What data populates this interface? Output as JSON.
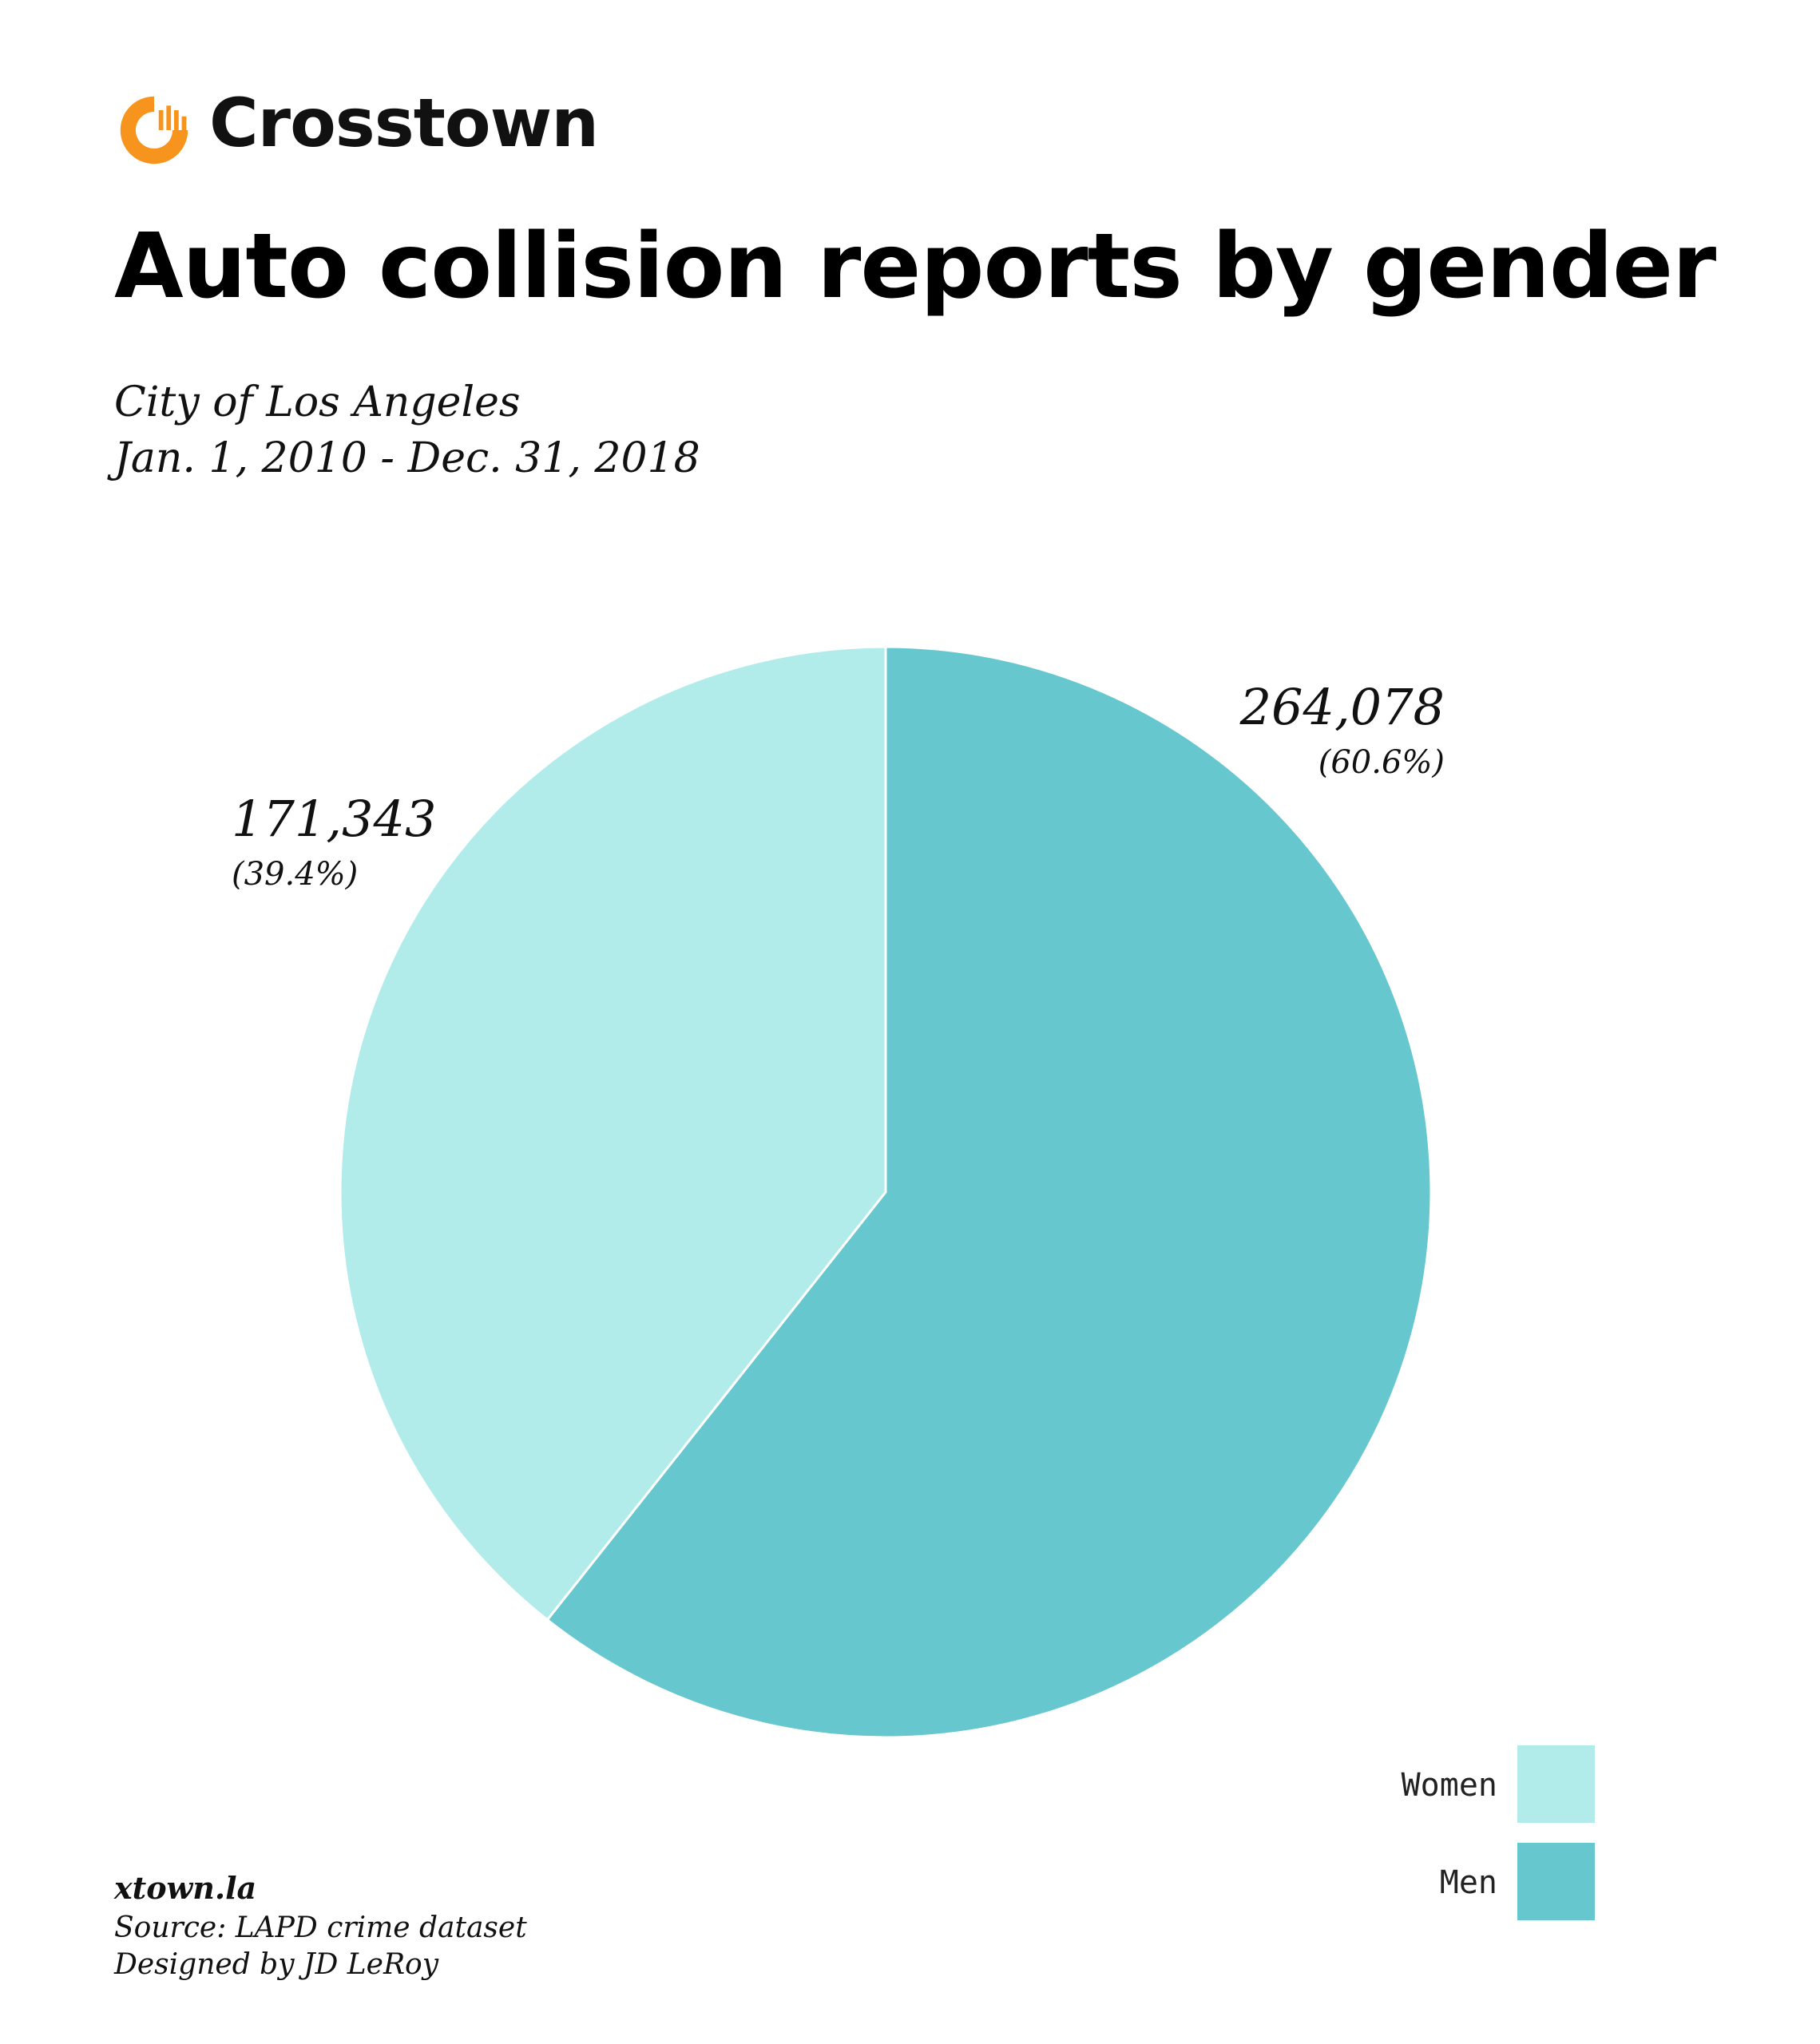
{
  "brand": {
    "name": "Crosstown",
    "logo_icon": "crosstown-logo-icon",
    "logo_color": "#F7941D"
  },
  "header": {
    "title": "Auto collision reports by gender",
    "subtitle_line1": "City of Los Angeles",
    "subtitle_line2": "Jan. 1, 2010 - Dec. 31, 2018"
  },
  "chart_data": {
    "type": "pie",
    "title": "Auto collision reports by gender",
    "slices": [
      {
        "name": "Men",
        "value": 264078,
        "percent": 60.6,
        "value_label": "264,078",
        "percent_label": "(60.6%)",
        "color": "#67C7CF"
      },
      {
        "name": "Women",
        "value": 171343,
        "percent": 39.4,
        "value_label": "171,343",
        "percent_label": "(39.4%)",
        "color": "#B1ECEB"
      }
    ],
    "legend": {
      "placement": "bottom-right",
      "entries": [
        {
          "label": "Women",
          "color": "#B1ECEB"
        },
        {
          "label": "Men",
          "color": "#67C7CF"
        }
      ]
    }
  },
  "footer": {
    "site": "xtown.la",
    "source": "Source: LAPD crime dataset",
    "designer": "Designed by JD LeRoy"
  }
}
